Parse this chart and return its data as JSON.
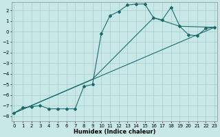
{
  "xlabel": "Humidex (Indice chaleur)",
  "background_color": "#c8e8e8",
  "grid_color": "#a8cccc",
  "line_color": "#1a6b6b",
  "xlim": [
    -0.3,
    23.3
  ],
  "ylim": [
    -8.5,
    2.8
  ],
  "xticks": [
    0,
    1,
    2,
    3,
    4,
    5,
    6,
    7,
    8,
    9,
    10,
    11,
    12,
    13,
    14,
    15,
    16,
    17,
    18,
    19,
    20,
    21,
    22,
    23
  ],
  "yticks": [
    2,
    1,
    0,
    -1,
    -2,
    -3,
    -4,
    -5,
    -6,
    -7,
    -8
  ],
  "curve1_x": [
    0,
    1,
    2,
    3,
    4,
    5,
    6,
    7,
    8,
    9,
    10,
    11,
    12,
    13,
    14,
    15,
    16,
    17,
    18,
    19,
    20,
    21,
    22,
    23
  ],
  "curve1_y": [
    -7.7,
    -7.2,
    -7.1,
    -7.0,
    -7.3,
    -7.3,
    -7.3,
    -7.3,
    -5.2,
    -5.0,
    -0.2,
    1.5,
    1.9,
    2.5,
    2.6,
    2.6,
    1.3,
    1.1,
    2.3,
    0.5,
    -0.3,
    -0.4,
    0.3,
    0.4
  ],
  "line2_x": [
    0,
    23
  ],
  "line2_y": [
    -7.7,
    0.4
  ],
  "line3_x": [
    0,
    9,
    16,
    19,
    23
  ],
  "line3_y": [
    -7.7,
    -4.5,
    1.3,
    0.5,
    0.4
  ]
}
